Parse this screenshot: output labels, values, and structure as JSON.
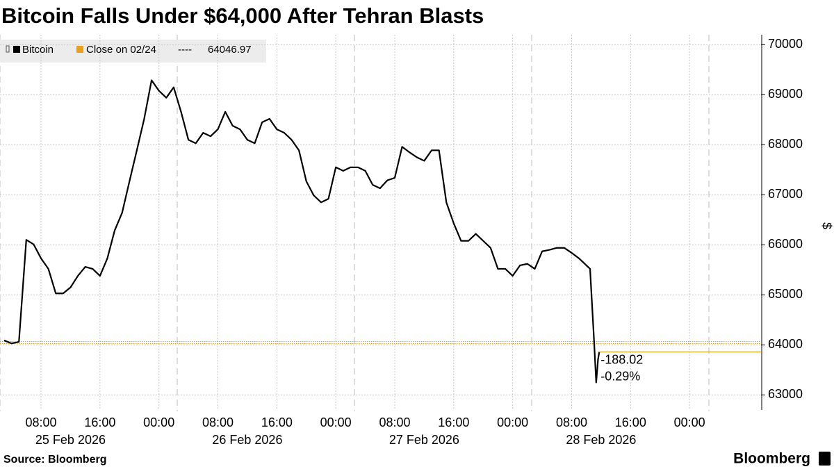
{
  "chart_data": {
    "type": "line",
    "title": "Bitcoin Falls Under $64,000 After Tehran Blasts",
    "y_axis_label": "$",
    "source": "Source: Bloomberg",
    "brand": "Bloomberg",
    "x": [
      "2026-02-25T03:00",
      "2026-02-25T04:00",
      "2026-02-25T05:00",
      "2026-02-25T06:00",
      "2026-02-25T07:00",
      "2026-02-25T08:00",
      "2026-02-25T09:00",
      "2026-02-25T10:00",
      "2026-02-25T11:00",
      "2026-02-25T12:00",
      "2026-02-25T13:00",
      "2026-02-25T14:00",
      "2026-02-25T15:00",
      "2026-02-25T16:00",
      "2026-02-25T17:00",
      "2026-02-25T18:00",
      "2026-02-25T19:00",
      "2026-02-25T20:00",
      "2026-02-25T21:00",
      "2026-02-25T22:00",
      "2026-02-25T23:00",
      "2026-02-26T00:00",
      "2026-02-26T01:00",
      "2026-02-26T02:00",
      "2026-02-26T03:00",
      "2026-02-26T04:00",
      "2026-02-26T05:00",
      "2026-02-26T06:00",
      "2026-02-26T07:00",
      "2026-02-26T08:00",
      "2026-02-26T09:00",
      "2026-02-26T10:00",
      "2026-02-26T11:00",
      "2026-02-26T12:00",
      "2026-02-26T13:00",
      "2026-02-26T14:00",
      "2026-02-26T15:00",
      "2026-02-26T16:00",
      "2026-02-26T17:00",
      "2026-02-26T18:00",
      "2026-02-26T19:00",
      "2026-02-26T20:00",
      "2026-02-26T21:00",
      "2026-02-26T22:00",
      "2026-02-26T23:00",
      "2026-02-27T00:00",
      "2026-02-27T01:00",
      "2026-02-27T02:00",
      "2026-02-27T03:00",
      "2026-02-27T04:00",
      "2026-02-27T05:00",
      "2026-02-27T06:00",
      "2026-02-27T07:00",
      "2026-02-27T08:00",
      "2026-02-27T09:00",
      "2026-02-27T10:00",
      "2026-02-27T11:00",
      "2026-02-27T12:00",
      "2026-02-27T13:00",
      "2026-02-27T14:00",
      "2026-02-27T15:00",
      "2026-02-27T16:00",
      "2026-02-27T17:00",
      "2026-02-27T18:00",
      "2026-02-27T19:00",
      "2026-02-27T20:00",
      "2026-02-27T21:00",
      "2026-02-27T22:00",
      "2026-02-27T23:00",
      "2026-02-28T00:00",
      "2026-02-28T01:00",
      "2026-02-28T02:00",
      "2026-02-28T03:00",
      "2026-02-28T04:00",
      "2026-02-28T05:00",
      "2026-02-28T06:00",
      "2026-02-28T07:00",
      "2026-02-28T08:00",
      "2026-02-28T09:00",
      "2026-02-28T10:00",
      "2026-02-28T10:30",
      "2026-02-28T11:00",
      "2026-02-28T11:20",
      "2026-02-28T11:35",
      "2026-02-28T11:45"
    ],
    "series": [
      {
        "name": "Bitcoin",
        "color": "#000000",
        "values": [
          64090,
          64030,
          64060,
          66100,
          66010,
          65730,
          65520,
          65030,
          65030,
          65150,
          65380,
          65560,
          65520,
          65380,
          65730,
          66290,
          66640,
          67270,
          67890,
          68520,
          69290,
          69080,
          68940,
          69150,
          68660,
          68100,
          68030,
          68240,
          68170,
          68310,
          68660,
          68380,
          68310,
          68100,
          68030,
          68450,
          68520,
          68310,
          68240,
          68100,
          67890,
          67270,
          66990,
          66850,
          66920,
          67550,
          67480,
          67550,
          67550,
          67480,
          67200,
          67130,
          67290,
          67340,
          67960,
          67850,
          67750,
          67680,
          67890,
          67890,
          66850,
          66430,
          66080,
          66080,
          66220,
          66080,
          65940,
          65520,
          65520,
          65380,
          65590,
          65620,
          65520,
          65870,
          65900,
          65940,
          65940,
          65840,
          65730,
          65590,
          65520,
          64200,
          63250,
          63710,
          63859
        ]
      }
    ],
    "reference_line": {
      "label": "Close on 02/24",
      "separator": "----",
      "value": 64046.97,
      "color": "#e8a020"
    },
    "change_annotation": {
      "change": -188.02,
      "percent": {
        "value": -0.29,
        "label": "-0.29%"
      },
      "color": "#d89a1e"
    },
    "xlim": [
      "2026-02-25T02:26",
      "2026-03-01T09:42"
    ],
    "xticks": [
      {
        "value": "2026-02-25T08:00",
        "label": "08:00"
      },
      {
        "value": "2026-02-25T16:00",
        "label": "16:00"
      },
      {
        "value": "2026-02-26T00:00",
        "label": "00:00"
      },
      {
        "value": "2026-02-26T08:00",
        "label": "08:00"
      },
      {
        "value": "2026-02-26T16:00",
        "label": "16:00"
      },
      {
        "value": "2026-02-27T00:00",
        "label": "00:00"
      },
      {
        "value": "2026-02-27T08:00",
        "label": "08:00"
      },
      {
        "value": "2026-02-27T16:00",
        "label": "16:00"
      },
      {
        "value": "2026-02-28T00:00",
        "label": "00:00"
      },
      {
        "value": "2026-02-28T08:00",
        "label": "08:00"
      },
      {
        "value": "2026-02-28T16:00",
        "label": "16:00"
      },
      {
        "value": "2026-03-01T00:00",
        "label": "00:00"
      }
    ],
    "x_date_labels": [
      {
        "value": "2026-02-25T12:00",
        "label": "25 Feb 2026"
      },
      {
        "value": "2026-02-26T12:00",
        "label": "26 Feb 2026"
      },
      {
        "value": "2026-02-27T12:00",
        "label": "27 Feb 2026"
      },
      {
        "value": "2026-02-28T12:00",
        "label": "28 Feb 2026"
      }
    ],
    "ylim": [
      62700,
      70200
    ],
    "yticks": [
      63000,
      64000,
      65000,
      66000,
      67000,
      68000,
      69000,
      70000
    ],
    "grid": true
  }
}
